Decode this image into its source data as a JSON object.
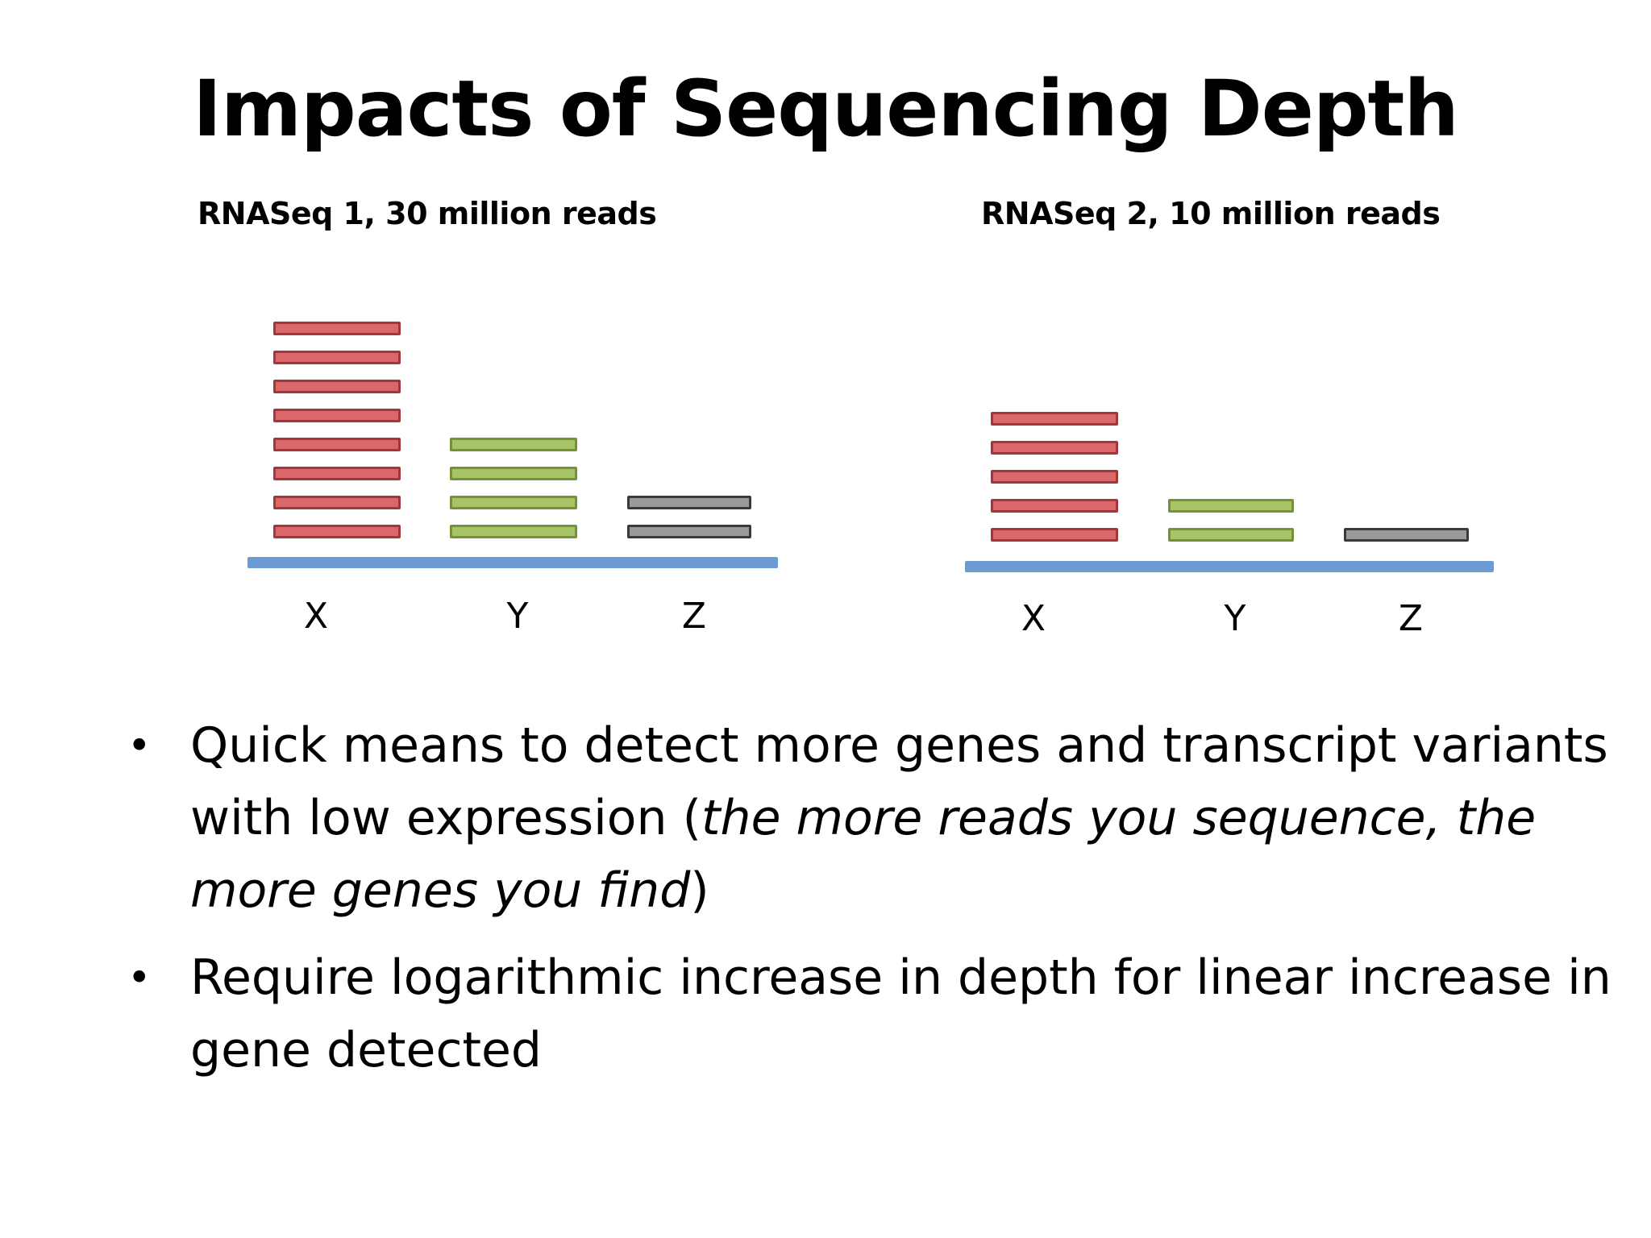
{
  "slide": {
    "title": "Impacts of Sequencing Depth"
  },
  "colors": {
    "gene_x_fill": "#d9686a",
    "gene_x_border": "#a4373a",
    "gene_y_fill": "#a8c466",
    "gene_y_border": "#74923a",
    "gene_z_fill": "#9a9a9a",
    "gene_z_border": "#3a3a3a",
    "baseline": "#6b9bd2"
  },
  "panels": [
    {
      "title": "RNASeq 1, 30 million reads",
      "genes": [
        {
          "label": "X",
          "reads": 8,
          "color": "x"
        },
        {
          "label": "Y",
          "reads": 4,
          "color": "y"
        },
        {
          "label": "Z",
          "reads": 2,
          "color": "z"
        }
      ]
    },
    {
      "title": "RNASeq 2, 10 million reads",
      "genes": [
        {
          "label": "X",
          "reads": 5,
          "color": "x"
        },
        {
          "label": "Y",
          "reads": 2,
          "color": "y"
        },
        {
          "label": "Z",
          "reads": 1,
          "color": "z"
        }
      ]
    }
  ],
  "bullets": [
    {
      "parts": [
        {
          "text": "Quick means to detect more genes and transcript variants with low expression (",
          "italic": false
        },
        {
          "text": "the more reads you sequence, the more genes you find",
          "italic": true
        },
        {
          "text": ")",
          "italic": false
        }
      ]
    },
    {
      "parts": [
        {
          "text": "Require logarithmic increase in depth for linear increase in gene detected",
          "italic": false
        }
      ]
    }
  ]
}
